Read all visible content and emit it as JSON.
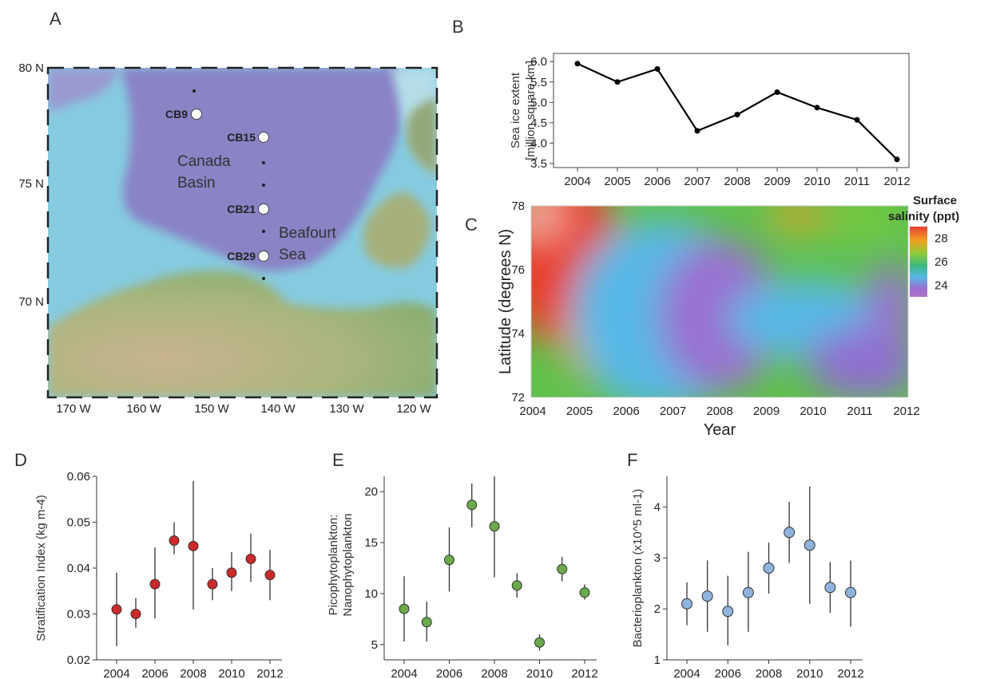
{
  "panels": {
    "a": "A",
    "b": "B",
    "c": "C",
    "d": "D",
    "e": "E",
    "f": "F"
  },
  "map": {
    "lat_labels": [
      "80 N",
      "75 N",
      "70 N"
    ],
    "lon_labels": [
      "170 W",
      "160 W",
      "150 W",
      "140 W",
      "130 W",
      "120 W"
    ],
    "stations": [
      "CB9",
      "CB15",
      "CB21",
      "CB29"
    ],
    "regions": {
      "basin_line1": "Canada",
      "basin_line2": "Basin",
      "sea_line1": "Beafourt",
      "sea_line2": "Sea"
    },
    "colors": {
      "deep": "#8a83c6",
      "shelf": "#84c8dc",
      "land": "#c4b28e",
      "land_green": "#8db073"
    }
  },
  "chart_data": [
    {
      "id": "B",
      "type": "line",
      "x": [
        "2004",
        "2005",
        "2006",
        "2007",
        "2008",
        "2009",
        "2010",
        "2011",
        "2012"
      ],
      "values": [
        5.95,
        5.5,
        5.82,
        4.3,
        4.7,
        5.25,
        4.87,
        4.57,
        3.6
      ],
      "ylim": [
        3.4,
        6.2
      ],
      "yticks": [
        "3.5",
        "4.0",
        "4.5",
        "5.0",
        "5.5",
        "6.0"
      ],
      "ylabel_line1": "Sea ice extent",
      "ylabel_line2": "[million square km]",
      "color": "#000000"
    },
    {
      "id": "C",
      "type": "heatmap",
      "x": [
        "2004",
        "2005",
        "2006",
        "2007",
        "2008",
        "2009",
        "2010",
        "2011",
        "2012"
      ],
      "yticks": [
        "72",
        "74",
        "76",
        "78"
      ],
      "xlabel": "Year",
      "ylabel": "Latitude (degrees N)",
      "legend_title_line1": "Surface",
      "legend_title_line2": "salinity (ppt)",
      "legend_ticks": [
        "28",
        "26",
        "24"
      ],
      "scale_range": [
        23,
        29
      ]
    },
    {
      "id": "D",
      "type": "scatter",
      "x": [
        "2004",
        "2005",
        "2006",
        "2007",
        "2008",
        "2009",
        "2010",
        "2011",
        "2012"
      ],
      "xticks": [
        "2004",
        "2006",
        "2008",
        "2010",
        "2012"
      ],
      "values": [
        0.031,
        0.03,
        0.0365,
        0.046,
        0.0448,
        0.0365,
        0.039,
        0.042,
        0.0385
      ],
      "err_low": [
        0.023,
        0.027,
        0.029,
        0.043,
        0.031,
        0.033,
        0.035,
        0.037,
        0.033
      ],
      "err_high": [
        0.039,
        0.0335,
        0.0445,
        0.05,
        0.059,
        0.04,
        0.0435,
        0.0475,
        0.044
      ],
      "ylim": [
        0.02,
        0.06
      ],
      "yticks": [
        "0.02",
        "0.03",
        "0.04",
        "0.05",
        "0.06"
      ],
      "xlabel": "Year",
      "ylabel": "Stratification Index (kg m-4)",
      "color": "#cc2a2a"
    },
    {
      "id": "E",
      "type": "scatter",
      "x": [
        "2004",
        "2005",
        "2006",
        "2007",
        "2008",
        "2009",
        "2010",
        "2011",
        "2012"
      ],
      "xticks": [
        "2004",
        "2006",
        "2008",
        "2010",
        "2012"
      ],
      "values": [
        8.5,
        7.2,
        13.3,
        18.7,
        16.6,
        10.8,
        5.2,
        12.4,
        10.1
      ],
      "err_low": [
        5.3,
        5.3,
        10.2,
        16.5,
        11.6,
        9.6,
        4.4,
        11.2,
        9.4
      ],
      "err_high": [
        11.7,
        9.2,
        16.5,
        20.8,
        21.5,
        12.0,
        6.0,
        13.6,
        10.9
      ],
      "ylim": [
        3.5,
        21.5
      ],
      "yticks": [
        "5",
        "10",
        "15",
        "20"
      ],
      "xlabel": "Year",
      "ylabel_line1": "Picophytoplankton:",
      "ylabel_line2": "Nanophytoplankton",
      "color": "#6aaa4a"
    },
    {
      "id": "F",
      "type": "scatter",
      "x": [
        "2004",
        "2005",
        "2006",
        "2007",
        "2008",
        "2009",
        "2010",
        "2011",
        "2012"
      ],
      "xticks": [
        "2004",
        "2006",
        "2008",
        "2010",
        "2012"
      ],
      "values": [
        2.1,
        2.25,
        1.95,
        2.32,
        2.8,
        3.5,
        3.25,
        2.42,
        2.32
      ],
      "err_low": [
        1.68,
        1.55,
        1.28,
        1.55,
        2.3,
        2.9,
        2.1,
        1.92,
        1.65
      ],
      "err_high": [
        2.52,
        2.95,
        2.65,
        3.12,
        3.3,
        4.1,
        4.4,
        2.92,
        2.95
      ],
      "ylim": [
        1.0,
        4.6
      ],
      "yticks": [
        "1",
        "2",
        "3",
        "4"
      ],
      "xlabel": "Year",
      "ylabel": "Bacterioplankton (x10^5 ml-1)",
      "color": "#8eb4de"
    }
  ]
}
